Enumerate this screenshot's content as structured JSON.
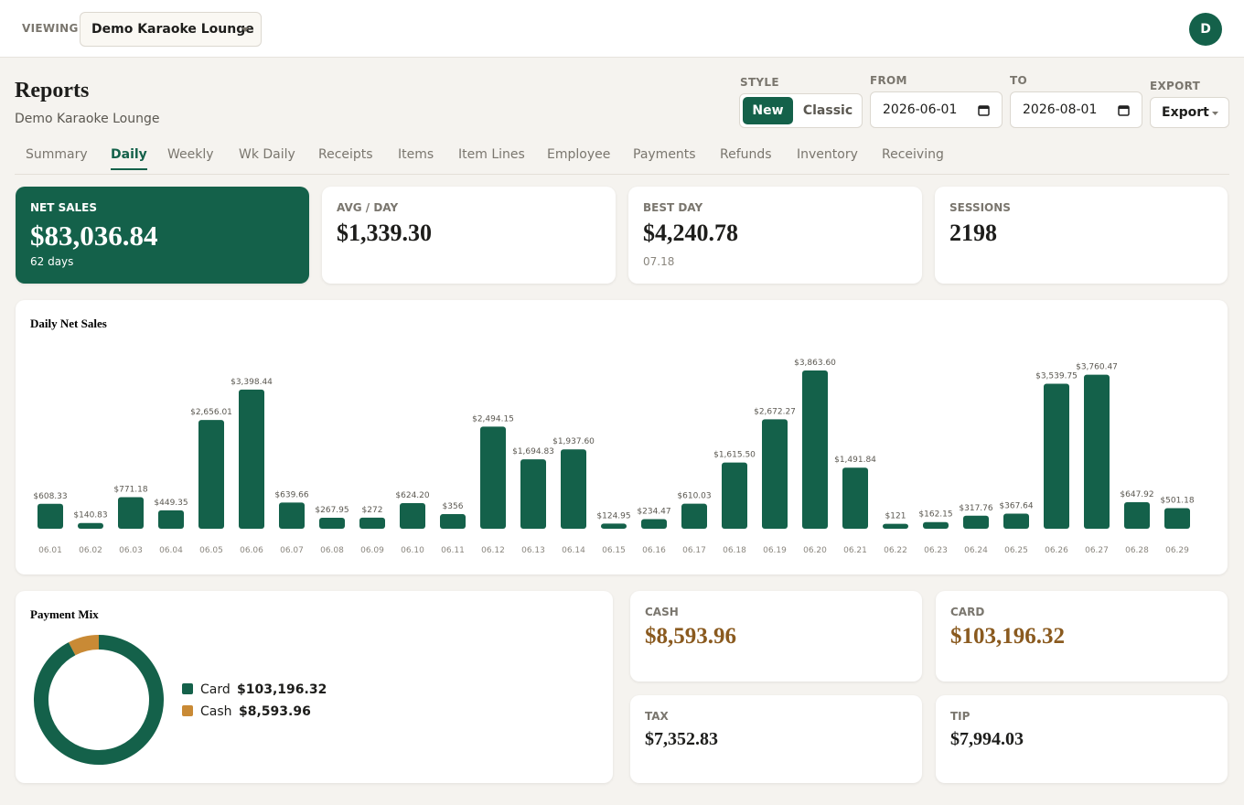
{
  "topbar": {
    "viewing_label": "VIEWING",
    "venue": "Demo Karaoke Lounge",
    "avatar": "D"
  },
  "header": {
    "title": "Reports",
    "subtitle": "Demo Karaoke Lounge"
  },
  "controls": {
    "style_label": "STYLE",
    "style_options": [
      "New",
      "Classic"
    ],
    "style_selected": 0,
    "from_label": "FROM",
    "from": "2026-06-01",
    "to_label": "TO",
    "to": "2026-08-01",
    "export_label": "EXPORT",
    "export_button": "Export"
  },
  "tabs": [
    "Summary",
    "Daily",
    "Weekly",
    "Wk Daily",
    "Receipts",
    "Items",
    "Item Lines",
    "Employee",
    "Payments",
    "Refunds",
    "Inventory",
    "Receiving"
  ],
  "active_tab": 1,
  "kpis": [
    {
      "label": "NET SALES",
      "value": "$83,036.84",
      "note": "62 days"
    },
    {
      "label": "AVG / DAY",
      "value": "$1,339.30"
    },
    {
      "label": "BEST DAY",
      "value": "$4,240.78",
      "note": "07.18"
    },
    {
      "label": "SESSIONS",
      "value": "2198"
    }
  ],
  "chart_data": [
    {
      "type": "bar",
      "title": "Daily Net Sales",
      "color": "#14614a",
      "categories": [
        "06.01",
        "06.02",
        "06.03",
        "06.04",
        "06.05",
        "06.06",
        "06.07",
        "06.08",
        "06.09",
        "06.10",
        "06.11",
        "06.12",
        "06.13",
        "06.14",
        "06.15",
        "06.16",
        "06.17",
        "06.18",
        "06.19",
        "06.20",
        "06.21",
        "06.22",
        "06.23",
        "06.24",
        "06.25",
        "06.26",
        "06.27",
        "06.28",
        "06.29"
      ],
      "values": [
        608.33,
        140.83,
        771.18,
        449.35,
        2656.01,
        3398.44,
        639.66,
        267.95,
        272,
        624.2,
        356,
        2494.15,
        1694.83,
        1937.6,
        124.95,
        234.47,
        610.03,
        1615.5,
        2672.27,
        3863.6,
        1491.84,
        121,
        162.15,
        317.76,
        367.64,
        3539.75,
        3760.47,
        647.92,
        501.18
      ],
      "value_labels": [
        "$608.33",
        "$140.83",
        "$771.18",
        "$449.35",
        "$2,656.01",
        "$3,398.44",
        "$639.66",
        "$267.95",
        "$272",
        "$624.20",
        "$356",
        "$2,494.15",
        "$1,694.83",
        "$1,937.60",
        "$124.95",
        "$234.47",
        "$610.03",
        "$1,615.50",
        "$2,672.27",
        "$3,863.60",
        "$1,491.84",
        "$121",
        "$162.15",
        "$317.76",
        "$367.64",
        "$3,539.75",
        "$3,760.47",
        "$647.92",
        "$501.18"
      ]
    },
    {
      "type": "donut",
      "title": "Payment Mix",
      "categories": [
        "Card",
        "Cash"
      ],
      "values": [
        103196.32,
        8593.96
      ],
      "value_labels": [
        "$103,196.32",
        "$8,593.96"
      ],
      "colors": [
        "#14614a",
        "#c98a35"
      ]
    }
  ],
  "payment_cards": [
    {
      "label": "CASH",
      "value": "$8,593.96",
      "accent": true
    },
    {
      "label": "CARD",
      "value": "$103,196.32",
      "accent": true
    },
    {
      "label": "TAX",
      "value": "$7,352.83"
    },
    {
      "label": "TIP",
      "value": "$7,994.03"
    }
  ]
}
